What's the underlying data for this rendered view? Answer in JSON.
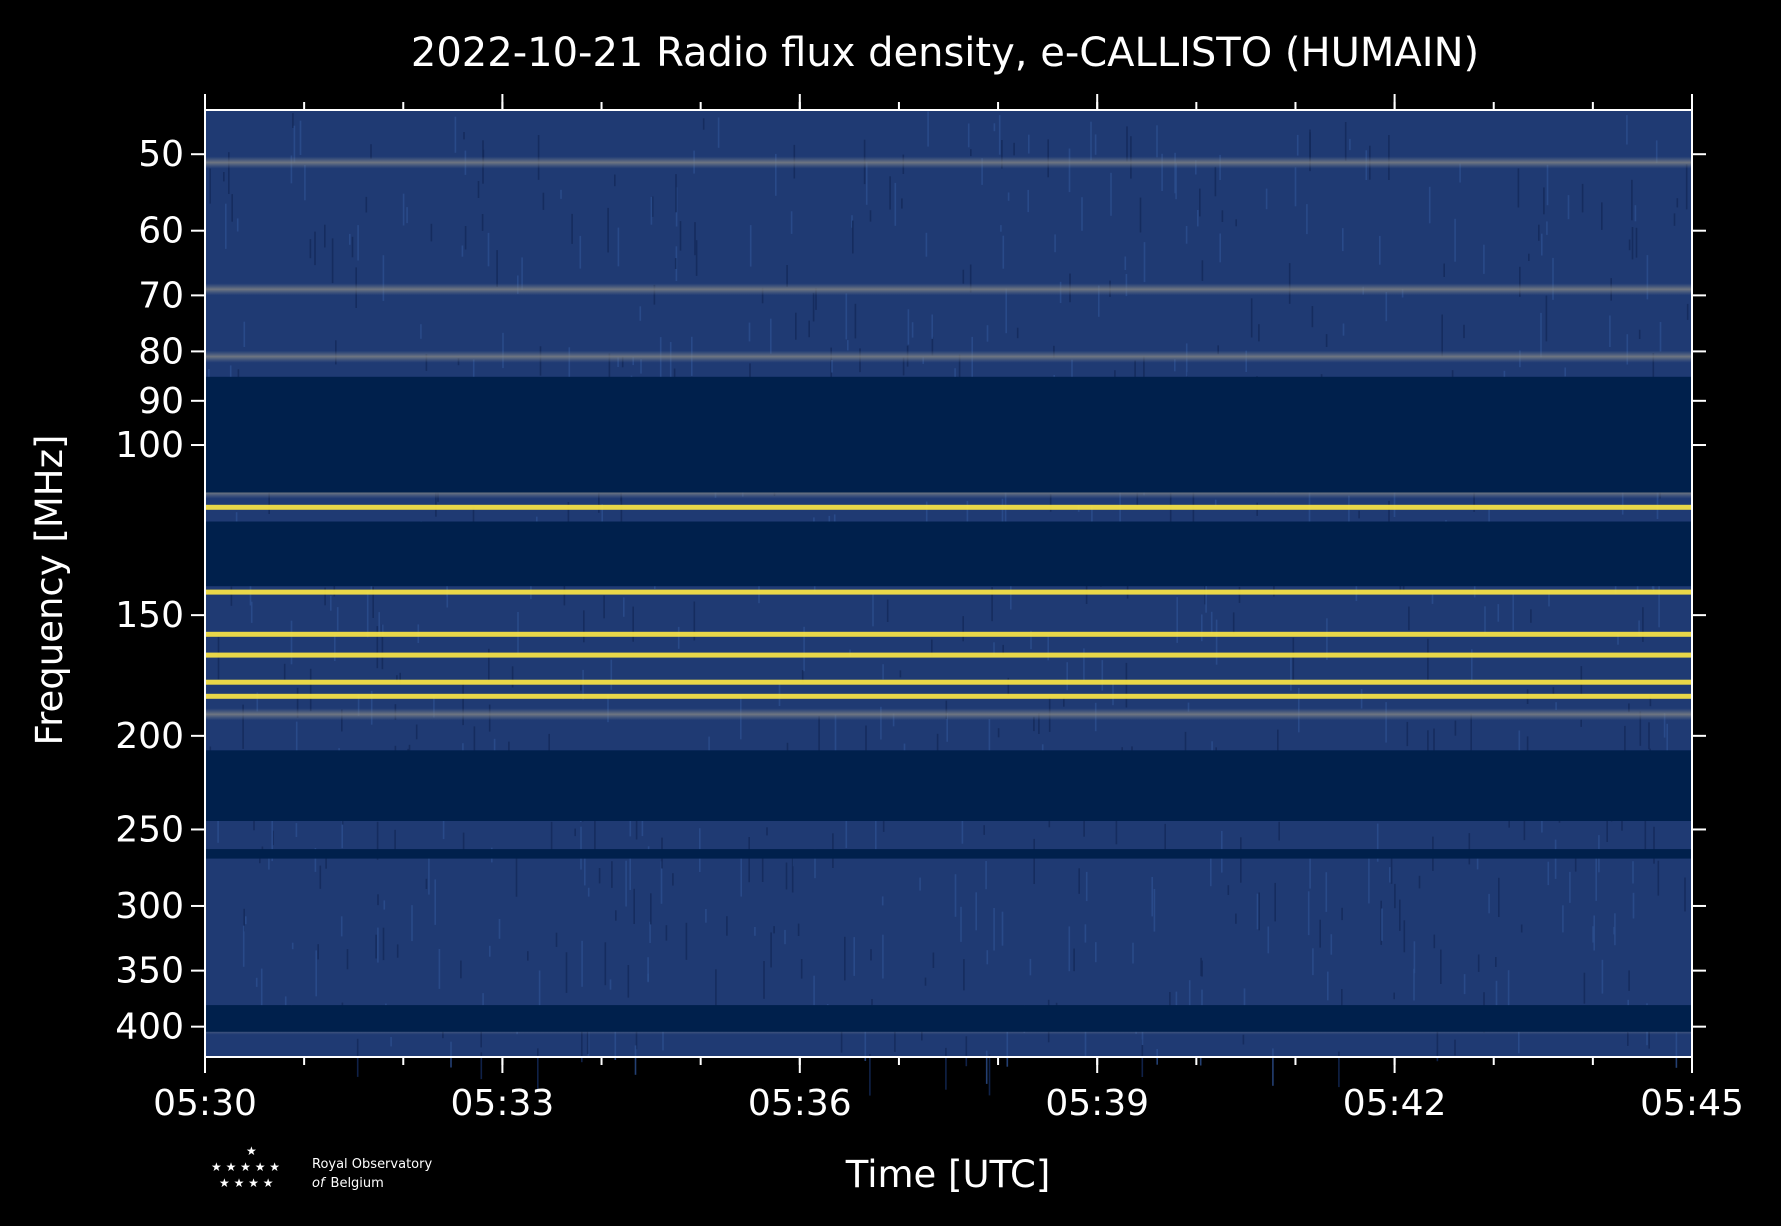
{
  "chart_data": {
    "type": "heatmap",
    "title": "2022-10-21 Radio flux density, e-CALLISTO (HUMAIN)",
    "xlabel": "Time [UTC]",
    "ylabel": "Frequency [MHz]",
    "x_range": [
      "05:30",
      "05:45"
    ],
    "x_ticks": [
      "05:30",
      "05:33",
      "05:36",
      "05:39",
      "05:42",
      "05:45"
    ],
    "y_scale": "log",
    "y_range": [
      45,
      430
    ],
    "y_ticks": [
      50,
      60,
      70,
      80,
      90,
      100,
      150,
      200,
      250,
      300,
      350,
      400
    ],
    "y_tick_labels": [
      "50",
      "60",
      "70",
      "80",
      "90",
      "100",
      "150",
      "200",
      "250",
      "300",
      "350",
      "400"
    ],
    "colormap": "cividis",
    "colors": {
      "low": "#00204c",
      "mid": "#7c7b78",
      "high": "#ffe945"
    },
    "no_data_bands_mhz": [
      [
        85,
        112
      ],
      [
        120,
        140
      ],
      [
        207,
        245
      ],
      [
        262,
        268
      ],
      [
        380,
        405
      ]
    ],
    "bright_bands_mhz": [
      {
        "freq": 51,
        "level": 0.55
      },
      {
        "freq": 69,
        "level": 0.6
      },
      {
        "freq": 81,
        "level": 0.5
      },
      {
        "freq": 112,
        "level": 0.55
      },
      {
        "freq": 116,
        "level": 0.9
      },
      {
        "freq": 142,
        "level": 0.95
      },
      {
        "freq": 157,
        "level": 1.0
      },
      {
        "freq": 165,
        "level": 1.0
      },
      {
        "freq": 176,
        "level": 0.85
      },
      {
        "freq": 182,
        "level": 0.95
      },
      {
        "freq": 190,
        "level": 0.5
      },
      {
        "freq": 402,
        "level": 0.5
      }
    ],
    "grid": false
  },
  "logo": {
    "line1": "Royal Observatory",
    "line2_italic": "of",
    "line2": "Belgium"
  }
}
